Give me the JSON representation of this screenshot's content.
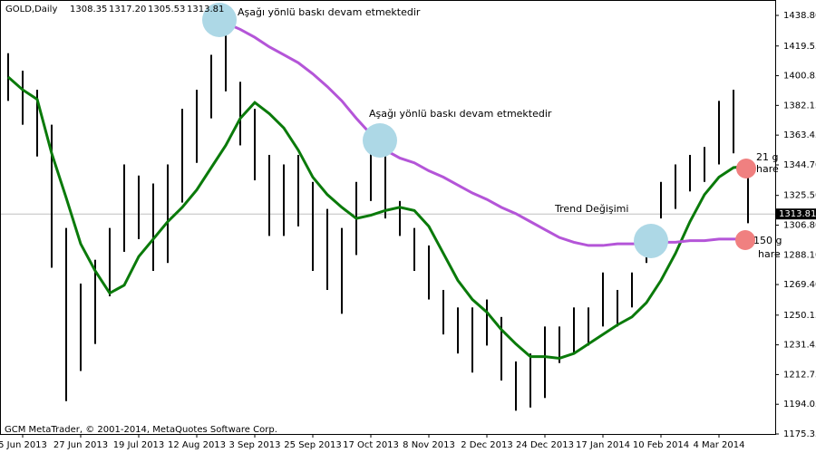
{
  "chart_data": {
    "type": "ohlc",
    "title": "GOLD,Daily",
    "header_values": [
      "1308.35",
      "1317.20",
      "1305.53",
      "1313.81"
    ],
    "footer": "GCM MetaTrader, © 2001-2014, MetaQuotes Software Corp.",
    "categories": [
      null,
      "5 Jun 2013",
      null,
      null,
      null,
      "27 Jun 2013",
      null,
      null,
      null,
      "19 Jul 2013",
      null,
      null,
      null,
      "12 Aug 2013",
      null,
      null,
      null,
      "3 Sep 2013",
      null,
      null,
      null,
      "25 Sep 2013",
      null,
      null,
      null,
      "17 Oct 2013",
      null,
      null,
      null,
      "8 Nov 2013",
      null,
      null,
      null,
      "2 Dec 2013",
      null,
      null,
      null,
      "24 Dec 2013",
      null,
      null,
      null,
      "17 Jan 2014",
      null,
      null,
      null,
      "10 Feb 2014",
      null,
      null,
      null,
      "4 Mar 2014",
      null,
      null
    ],
    "high": [
      1415,
      1404,
      1392,
      1370,
      1305,
      1270,
      1285,
      1305,
      1345,
      1338,
      1333,
      1345,
      1380,
      1392,
      1414,
      1434,
      1397,
      1380,
      1351,
      1345,
      1351,
      1334,
      1317,
      1305,
      1334,
      1362,
      1351,
      1322,
      1305,
      1294,
      1266,
      1255,
      1255,
      1260,
      1249,
      1221,
      1226,
      1243,
      1243,
      1255,
      1255,
      1277,
      1266,
      1277,
      1305,
      1334,
      1345,
      1351,
      1356,
      1385,
      1392,
      1345
    ],
    "low": [
      1385,
      1370,
      1350,
      1280,
      1196,
      1215,
      1232,
      1262,
      1290,
      1298,
      1278,
      1283,
      1321,
      1346,
      1374,
      1391,
      1357,
      1335,
      1300,
      1300,
      1306,
      1278,
      1266,
      1251,
      1288,
      1322,
      1311,
      1300,
      1278,
      1260,
      1238,
      1226,
      1214,
      1231,
      1209,
      1190,
      1192,
      1198,
      1220,
      1226,
      1231,
      1243,
      1243,
      1255,
      1283,
      1311,
      1317,
      1328,
      1334,
      1345,
      1352,
      1308
    ],
    "bar_color": "#000000",
    "series": [
      {
        "color": "#0a7a0a",
        "values": [
          1400,
          1392,
          1386,
          1352,
          1324,
          1295,
          1278,
          1264,
          1269,
          1287,
          1298,
          1309,
          1318,
          1329,
          1343,
          1357,
          1374,
          1384,
          1377,
          1368,
          1354,
          1337,
          1326,
          1318,
          1311,
          1313,
          1316,
          1318,
          1316,
          1306,
          1289,
          1272,
          1260,
          1252,
          1241,
          1232,
          1224,
          1224,
          1223,
          1226,
          1232,
          1238,
          1244,
          1249,
          1258,
          1272,
          1289,
          1309,
          1326,
          1337,
          1343,
          1344
        ]
      },
      {
        "color": "#b455d8",
        "values": [
          null,
          null,
          null,
          null,
          null,
          null,
          null,
          null,
          null,
          null,
          null,
          null,
          null,
          null,
          null,
          1434,
          1430,
          1425,
          1419,
          1414,
          1409,
          1402,
          1394,
          1385,
          1374,
          1364,
          1354,
          1349,
          1346,
          1341,
          1337,
          1332,
          1327,
          1323,
          1318,
          1314,
          1309,
          1304,
          1299,
          1296,
          1294,
          1294,
          1295,
          1295,
          1295,
          1296,
          1296,
          1297,
          1297,
          1298,
          1298,
          1298
        ]
      }
    ],
    "last_price": 1313.81,
    "ylim": [
      1175.35,
      1438.8
    ],
    "yticks": [
      {
        "value": 1438.8,
        "label": "1438.80"
      },
      1419.55,
      1400.85,
      1382.15,
      1363.45,
      {
        "value": 1344.7,
        "label": "1344.70"
      },
      {
        "value": 1325.5,
        "label": "1325.50"
      },
      {
        "value": 1306.8,
        "label": "1306.80"
      },
      {
        "value": 1288.1,
        "label": "1288.10"
      },
      {
        "value": 1269.4,
        "label": "1269.40"
      },
      1250.15,
      1231.45,
      1212.75,
      1194.05,
      1175.35
    ],
    "annotations": [
      "Aşağı yönlü baskı devam etmektedir",
      "Aşağı yönlü baskı devam etmektedir",
      "Trend Değişimi",
      "21 g",
      "hare",
      "150 g",
      "hare"
    ]
  }
}
